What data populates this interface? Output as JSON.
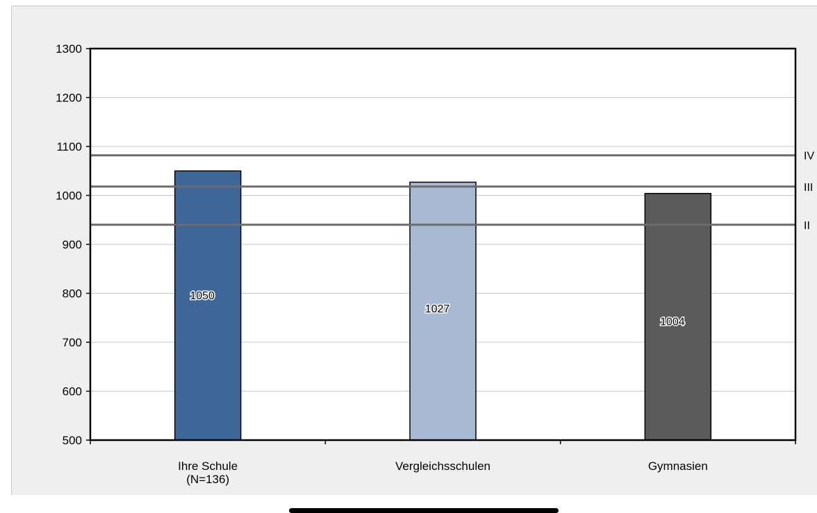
{
  "chart_data": {
    "type": "bar",
    "title": "",
    "xlabel": "",
    "ylabel": "",
    "categories": [
      [
        "Ihre Schule",
        "(N=136)"
      ],
      [
        "Vergleichsschulen"
      ],
      [
        "Gymnasien"
      ]
    ],
    "values": [
      1050,
      1027,
      1004
    ],
    "bar_colors": [
      "#3f6699",
      "#a8bad4",
      "#5a5a5a"
    ],
    "ylim": [
      500,
      1300
    ],
    "yticks": [
      500,
      600,
      700,
      800,
      900,
      1000,
      1100,
      1200,
      1300
    ],
    "grid": true,
    "reference_lines": [
      {
        "label": "IV",
        "value": 1082
      },
      {
        "label": "III",
        "value": 1018
      },
      {
        "label": "II",
        "value": 940
      }
    ],
    "data_labels": [
      "1050",
      "1027",
      "1004"
    ]
  }
}
